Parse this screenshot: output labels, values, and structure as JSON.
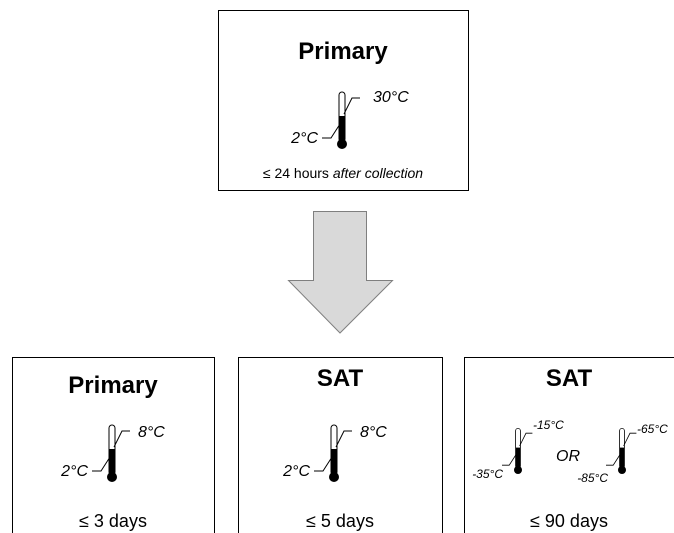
{
  "top": {
    "title": "Primary",
    "high": "30°C",
    "low": "2°C",
    "time": "≤ 24 hours",
    "time_note": "after collection"
  },
  "boxes": [
    {
      "title": "Primary",
      "high": "8°C",
      "low": "2°C",
      "time": "≤ 3 days"
    },
    {
      "title": "SAT",
      "high": "8°C",
      "low": "2°C",
      "time": "≤ 5 days"
    },
    {
      "title": "SAT",
      "ranges": [
        {
          "high": "-15°C",
          "low": "-35°C"
        },
        {
          "high": "-65°C",
          "low": "-85°C"
        }
      ],
      "separator": "OR",
      "time": "≤ 90 days"
    }
  ]
}
